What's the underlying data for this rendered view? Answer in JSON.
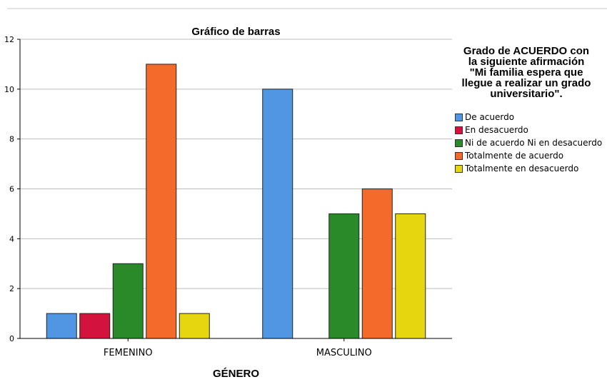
{
  "chart_data": {
    "type": "bar",
    "title": "Gráfico de barras",
    "xlabel": "GÉNERO",
    "ylabel": "",
    "categories": [
      "FEMENINO",
      "MASCULINO"
    ],
    "ylim": [
      0,
      12
    ],
    "yticks": [
      0,
      2,
      4,
      6,
      8,
      10,
      12
    ],
    "grid": true,
    "legend_placement": "right",
    "legend_title": "Grado de ACUERDO con\nla siguiente afirmación\n\"Mi familia espera que\nllegue a realizar un grado\nuniversitario\".",
    "series": [
      {
        "name": "De acuerdo",
        "color": "#5096e3",
        "values": [
          1,
          10
        ]
      },
      {
        "name": "En desacuerdo",
        "color": "#d4123e",
        "values": [
          1,
          0
        ]
      },
      {
        "name": "Ni de acuerdo Ni en desacuerdo",
        "color": "#2a8a2a",
        "values": [
          3,
          5
        ]
      },
      {
        "name": "Totalmente de acuerdo",
        "color": "#f46a2a",
        "values": [
          11,
          6
        ]
      },
      {
        "name": "Totalmente en desacuerdo",
        "color": "#e6d60f",
        "values": [
          1,
          5
        ]
      }
    ]
  }
}
